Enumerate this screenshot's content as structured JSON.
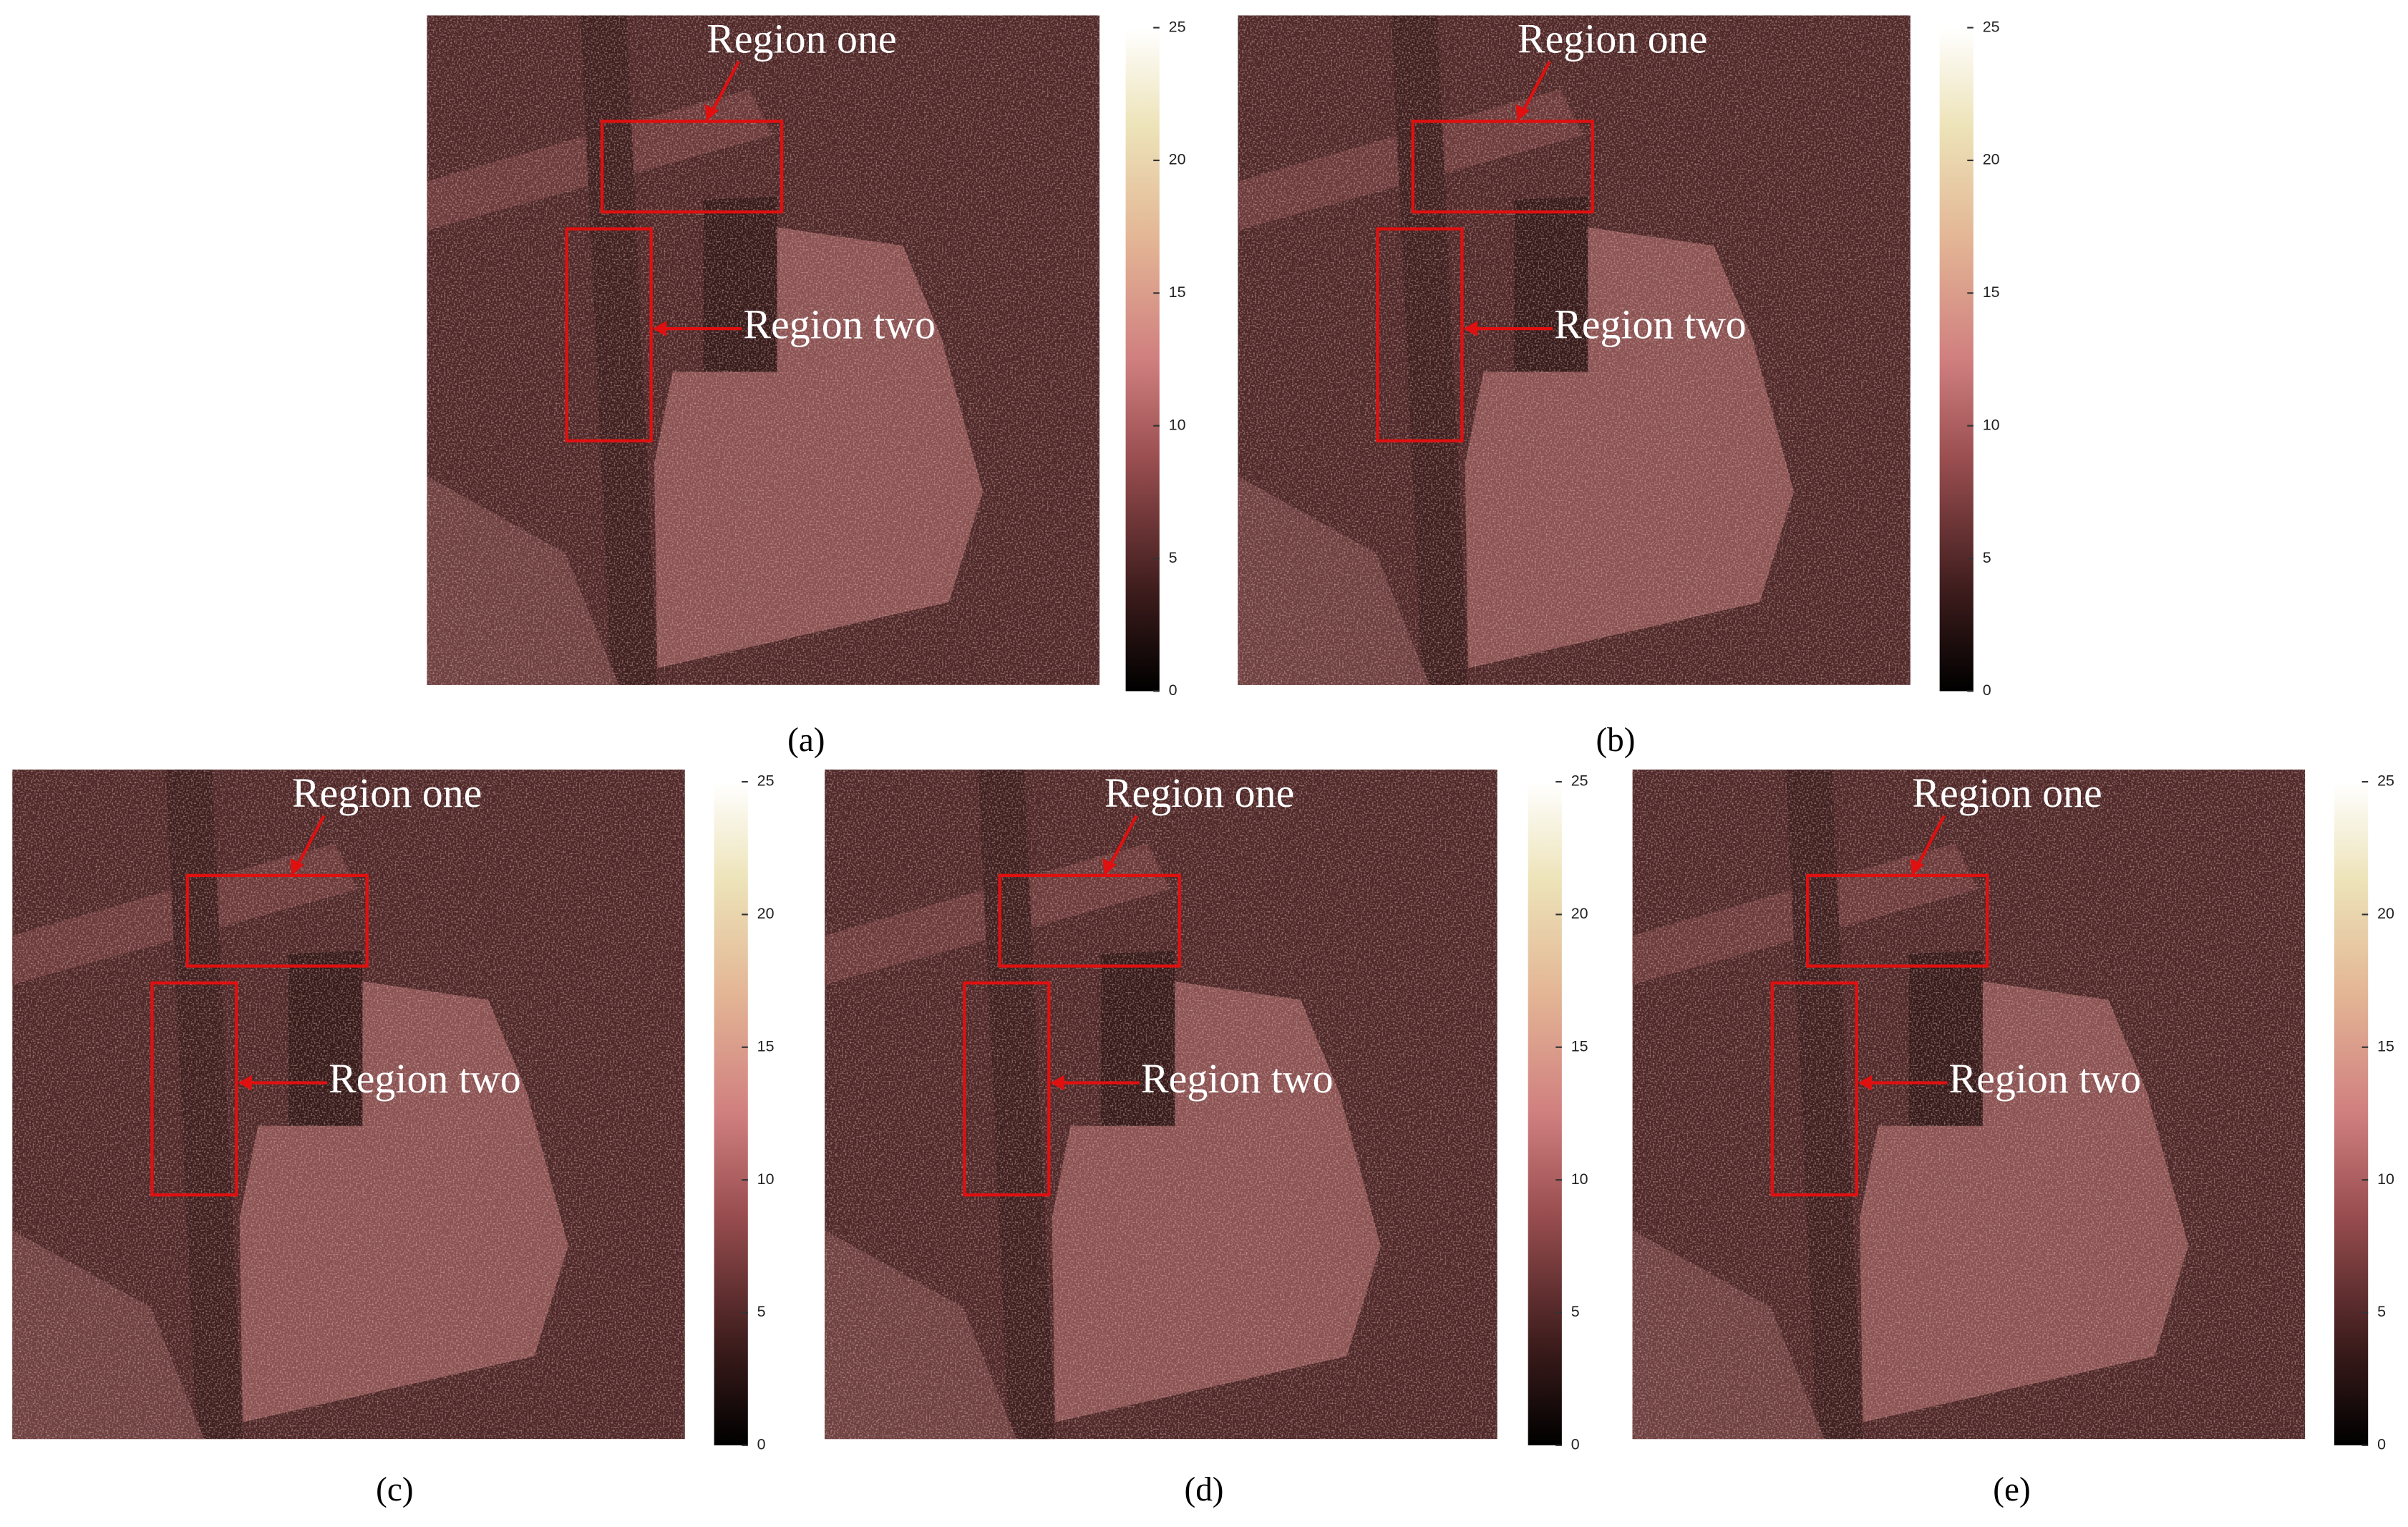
{
  "panels": [
    {
      "label": "(a)",
      "region_one": "Region one",
      "region_two": "Region two",
      "colorbar": {
        "lim": [
          0,
          25
        ],
        "ticks": [
          0,
          5,
          10,
          15,
          20,
          25
        ]
      }
    },
    {
      "label": "(b)",
      "region_one": "Region one",
      "region_two": "Region two",
      "colorbar": {
        "lim": [
          0,
          25
        ],
        "ticks": [
          0,
          5,
          10,
          15,
          20,
          25
        ]
      }
    },
    {
      "label": "(c)",
      "region_one": "Region one",
      "region_two": "Region two",
      "colorbar": {
        "lim": [
          0,
          25
        ],
        "ticks": [
          0,
          5,
          10,
          15,
          20,
          25
        ]
      }
    },
    {
      "label": "(d)",
      "region_one": "Region one",
      "region_two": "Region two",
      "colorbar": {
        "lim": [
          0,
          25
        ],
        "ticks": [
          0,
          5,
          10,
          15,
          20,
          25
        ]
      }
    },
    {
      "label": "(e)",
      "region_one": "Region one",
      "region_two": "Region two",
      "colorbar": {
        "lim": [
          0,
          25
        ],
        "ticks": [
          0,
          5,
          10,
          15,
          20,
          25
        ]
      }
    }
  ]
}
